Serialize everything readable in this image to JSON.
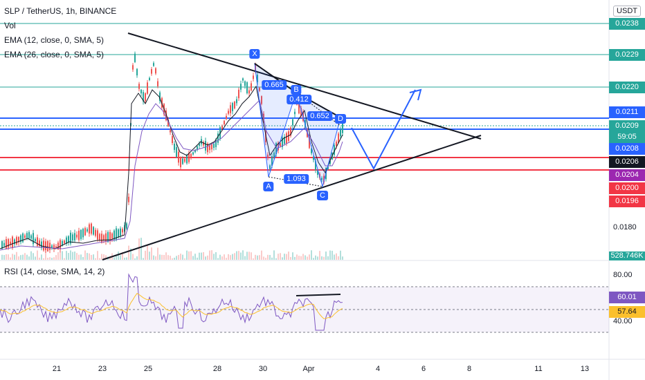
{
  "legend": {
    "symbol": "SLP / TetherUS, 1h, BINANCE",
    "vol": "Vol",
    "ema1": "EMA (12, close, 0, SMA, 5)",
    "ema2": "EMA (26, close, 0, SMA, 5)",
    "rsi": "RSI (14, close, SMA, 14, 2)"
  },
  "currency_badge": "USDT",
  "price_labels": [
    {
      "text": "0.0238",
      "color": "#26a69a"
    },
    {
      "text": "0.0229",
      "color": "#26a69a"
    },
    {
      "text": "0.0220",
      "color": "#26a69a"
    },
    {
      "text": "0.0211",
      "color": "#2962ff"
    },
    {
      "text": "0.0209",
      "color": "#26a69a"
    },
    {
      "text": "59:05",
      "color": "#26a69a"
    },
    {
      "text": "0.0208",
      "color": "#2962ff"
    },
    {
      "text": "0.0206",
      "color": "#131722"
    },
    {
      "text": "0.0204",
      "color": "#9c27b0"
    },
    {
      "text": "0.0200",
      "color": "#f23645"
    },
    {
      "text": "0.0196",
      "color": "#f23645"
    }
  ],
  "axis_price": "0.0180",
  "volume_label": "528.746K",
  "rsi_axis": [
    "80.00",
    "40.00"
  ],
  "rsi_values": [
    {
      "text": "60.01",
      "color": "#7e57c2"
    },
    {
      "text": "57.64",
      "color": "#fbc02d"
    }
  ],
  "x_labels": [
    "21",
    "23",
    "25",
    "28",
    "30",
    "Apr",
    "4",
    "6",
    "8",
    "11",
    "13"
  ],
  "pattern_points": [
    "X",
    "A",
    "B",
    "C",
    "D"
  ],
  "ratios": [
    "0.665",
    "0.412",
    "0.652",
    "1.093"
  ]
}
